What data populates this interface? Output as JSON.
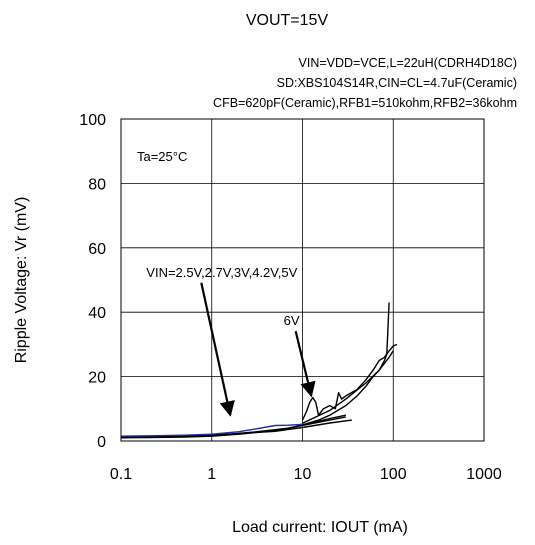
{
  "chart_data": {
    "type": "line",
    "title": "VOUT=15V",
    "conditions": [
      "VIN=VDD=VCE,L=22uH(CDRH4D18C)",
      "SD:XBS104S14R,CIN=CL=4.7uF(Ceramic)",
      "CFB=620pF(Ceramic),RFB1=510kohm,RFB2=36kohm"
    ],
    "xlabel": "Load current: IOUT (mA)",
    "ylabel": "Ripple Voltage: Vr (mV)",
    "x_scale": "log",
    "xlim": [
      0.1,
      1000
    ],
    "ylim": [
      0,
      100
    ],
    "x_ticks": [
      0.1,
      1,
      10,
      100,
      1000
    ],
    "x_tick_labels": [
      "0.1",
      "1",
      "10",
      "100",
      "1000"
    ],
    "y_ticks": [
      0,
      20,
      40,
      60,
      80,
      100
    ],
    "y_tick_labels": [
      "0",
      "20",
      "40",
      "60",
      "80",
      "100"
    ],
    "grid": true,
    "annotations": [
      {
        "text": "Ta=25°C",
        "x": 0.15,
        "y": 87
      },
      {
        "text": "VIN=2.5V,2.7V,3V,4.2V,5V",
        "x": 0.19,
        "y": 51,
        "arrow_to": {
          "x": 1.6,
          "y": 8
        }
      },
      {
        "text": "6V",
        "x": 6.2,
        "y": 36,
        "arrow_to": {
          "x": 12.5,
          "y": 14
        }
      }
    ],
    "series": [
      {
        "color": "#000000",
        "x": [
          0.1,
          0.2,
          0.5,
          1,
          2,
          3,
          5,
          7,
          10,
          20,
          30
        ],
        "y": [
          1.2,
          1.3,
          1.4,
          1.8,
          2.4,
          2.8,
          3.5,
          4,
          5,
          7,
          8
        ]
      },
      {
        "color": "#000000",
        "x": [
          0.1,
          0.2,
          0.5,
          1,
          2,
          3,
          5,
          7,
          10,
          20,
          30
        ],
        "y": [
          1.0,
          1.1,
          1.2,
          1.5,
          2.1,
          2.6,
          3.3,
          3.9,
          4.8,
          6.5,
          7.5
        ]
      },
      {
        "color": "#000000",
        "x": [
          0.1,
          0.2,
          0.5,
          1,
          2,
          3,
          5,
          7,
          10,
          20,
          35
        ],
        "y": [
          1.1,
          1.2,
          1.5,
          1.8,
          2.2,
          2.6,
          3,
          3.6,
          4.2,
          5.6,
          6.5
        ]
      },
      {
        "color": "#1f2fa0",
        "x": [
          0.1,
          0.2,
          0.5,
          1,
          2,
          3,
          5,
          7,
          10
        ],
        "y": [
          1.5,
          1.6,
          1.8,
          2.1,
          2.9,
          3.7,
          4.8,
          4.9,
          5.2
        ]
      },
      {
        "color": "#000000",
        "x": [
          10,
          15,
          20,
          30,
          40,
          50,
          60,
          70,
          80,
          85,
          90
        ],
        "y": [
          5,
          6.5,
          8,
          11,
          14,
          17,
          20,
          22,
          25,
          27,
          43
        ]
      },
      {
        "color": "#000000",
        "x": [
          10,
          11,
          12,
          13,
          14,
          15,
          17,
          20,
          23,
          25,
          27,
          30,
          40,
          50,
          60,
          70,
          80,
          90,
          100,
          110
        ],
        "y": [
          6.5,
          9,
          12,
          13.5,
          12,
          8,
          10,
          11,
          10,
          15,
          13,
          14,
          16,
          19,
          22,
          25,
          26,
          28,
          29.5,
          30
        ]
      },
      {
        "color": "#000000",
        "x": [
          10,
          20,
          30,
          50,
          70,
          90,
          100
        ],
        "y": [
          5.5,
          9.5,
          13,
          18,
          22,
          26,
          28
        ]
      }
    ]
  }
}
